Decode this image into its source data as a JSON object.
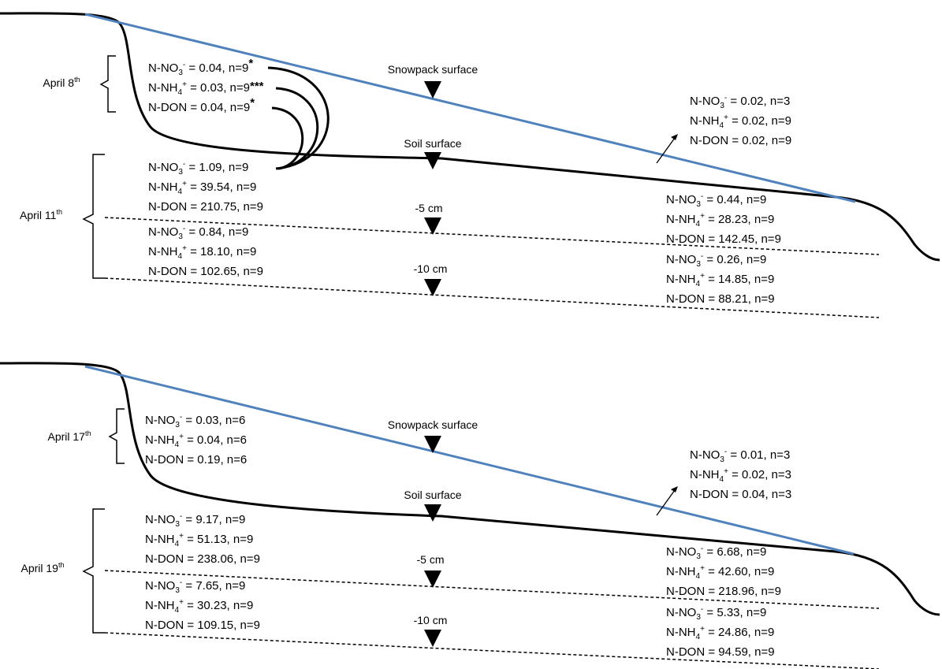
{
  "panels": [
    {
      "snow_date": "April 8",
      "soil_date": "April 11",
      "date_suffix": "th",
      "snowpack_label": "Snowpack surface",
      "soil_label": "Soil surface",
      "depth1_label": "-5 cm",
      "depth2_label": "-10 cm",
      "snow_left": [
        {
          "species": "NO3",
          "value": "0.04",
          "n": "9",
          "sig": "*"
        },
        {
          "species": "NH4",
          "value": "0.03",
          "n": "9",
          "sig": "***"
        },
        {
          "species": "DON",
          "value": "0.04",
          "n": "9",
          "sig": "*"
        }
      ],
      "snow_right": [
        {
          "species": "NO3",
          "value": "0.02",
          "n": "3"
        },
        {
          "species": "NH4",
          "value": "0.02",
          "n": "9"
        },
        {
          "species": "DON",
          "value": "0.02",
          "n": "9"
        }
      ],
      "soil_left_top": [
        {
          "species": "NO3",
          "value": "1.09",
          "n": "9"
        },
        {
          "species": "NH4",
          "value": "39.54",
          "n": "9"
        },
        {
          "species": "DON",
          "value": "210.75",
          "n": "9"
        }
      ],
      "soil_left_bottom": [
        {
          "species": "NO3",
          "value": "0.84",
          "n": "9"
        },
        {
          "species": "NH4",
          "value": "18.10",
          "n": "9"
        },
        {
          "species": "DON",
          "value": "102.65",
          "n": "9"
        }
      ],
      "soil_right_top": [
        {
          "species": "NO3",
          "value": "0.44",
          "n": "9"
        },
        {
          "species": "NH4",
          "value": "28.23",
          "n": "9"
        },
        {
          "species": "DON",
          "value": "142.45",
          "n": "9"
        }
      ],
      "soil_right_bottom": [
        {
          "species": "NO3",
          "value": "0.26",
          "n": "9"
        },
        {
          "species": "NH4",
          "value": "14.85",
          "n": "9"
        },
        {
          "species": "DON",
          "value": "88.21",
          "n": "9"
        }
      ]
    },
    {
      "snow_date": "April 17",
      "soil_date": "April 19",
      "date_suffix": "th",
      "snowpack_label": "Snowpack surface",
      "soil_label": "Soil surface",
      "depth1_label": "-5 cm",
      "depth2_label": "-10 cm",
      "snow_left": [
        {
          "species": "NO3",
          "value": "0.03",
          "n": "6"
        },
        {
          "species": "NH4",
          "value": "0.04",
          "n": "6"
        },
        {
          "species": "DON",
          "value": "0.19",
          "n": "6"
        }
      ],
      "snow_right": [
        {
          "species": "NO3",
          "value": "0.01",
          "n": "3"
        },
        {
          "species": "NH4",
          "value": "0.02",
          "n": "3"
        },
        {
          "species": "DON",
          "value": "0.04",
          "n": "3"
        }
      ],
      "soil_left_top": [
        {
          "species": "NO3",
          "value": "9.17",
          "n": "9"
        },
        {
          "species": "NH4",
          "value": "51.13",
          "n": "9"
        },
        {
          "species": "DON",
          "value": "238.06",
          "n": "9"
        }
      ],
      "soil_left_bottom": [
        {
          "species": "NO3",
          "value": "7.65",
          "n": "9"
        },
        {
          "species": "NH4",
          "value": "30.23",
          "n": "9"
        },
        {
          "species": "DON",
          "value": "109.15",
          "n": "9"
        }
      ],
      "soil_right_top": [
        {
          "species": "NO3",
          "value": "6.68",
          "n": "9"
        },
        {
          "species": "NH4",
          "value": "42.60",
          "n": "9"
        },
        {
          "species": "DON",
          "value": "218.96",
          "n": "9"
        }
      ],
      "soil_right_bottom": [
        {
          "species": "NO3",
          "value": "5.33",
          "n": "9"
        },
        {
          "species": "NH4",
          "value": "24.86",
          "n": "9"
        },
        {
          "species": "DON",
          "value": "94.59",
          "n": "9"
        }
      ]
    }
  ],
  "colors": {
    "snow_line": "#4f81bd",
    "ground_line": "#000000",
    "depth_line": "#000000"
  }
}
